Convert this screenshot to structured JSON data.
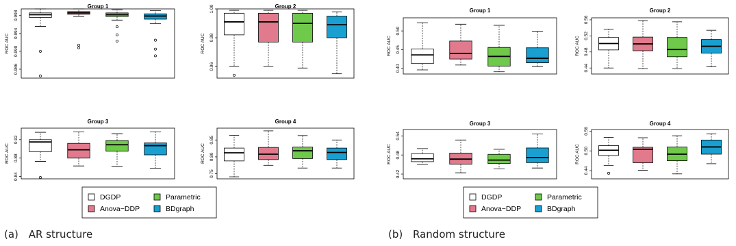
{
  "colors": {
    "DGDP": "#ffffff",
    "Anova-DDP": "#e17a8c",
    "Parametric": "#6fc94a",
    "BDgraph": "#1a9fd1",
    "stroke": "#000000"
  },
  "legend": [
    "DGDP",
    "Anova−DDP",
    "Parametric",
    "BDgraph"
  ],
  "captions": [
    {
      "tag": "(a)",
      "text": "AR structure"
    },
    {
      "tag": "(b)",
      "text": "Random structure"
    }
  ],
  "chart_data": [
    {
      "type": "box",
      "title": "Group 1",
      "ylabel": "ROC AUC",
      "yticks": [
        "0.986",
        "0.990",
        "0.994",
        "0.998"
      ],
      "ytick_values": [
        0.986,
        0.99,
        0.994,
        0.998
      ],
      "ylim": [
        0.984,
        0.9995
      ],
      "boxes": [
        {
          "whislo": 0.9956,
          "q1": 0.9976,
          "med": 0.9982,
          "q3": 0.9986,
          "whishi": 0.9995,
          "outliers": [
            0.99,
            0.9845
          ]
        },
        {
          "whislo": 0.9978,
          "q1": 0.9983,
          "med": 0.9986,
          "q3": 0.9989,
          "whishi": 0.9995,
          "outliers": [
            0.9914,
            0.9908
          ]
        },
        {
          "whislo": 0.997,
          "q1": 0.9978,
          "med": 0.9982,
          "q3": 0.9986,
          "whishi": 0.9993,
          "outliers": [
            0.9955,
            0.9937,
            0.9923
          ]
        },
        {
          "whislo": 0.9962,
          "q1": 0.9972,
          "med": 0.9979,
          "q3": 0.9984,
          "whishi": 0.9991,
          "outliers": [
            0.9925,
            0.9905,
            0.989
          ]
        }
      ]
    },
    {
      "type": "box",
      "title": "Group 2",
      "ylabel": "ROC AUC",
      "yticks": [
        "0.96",
        "0.98",
        "1.00"
      ],
      "ytick_values": [
        0.96,
        0.98,
        1.0
      ],
      "ylim": [
        0.952,
        1.0
      ],
      "boxes": [
        {
          "whislo": 0.96,
          "q1": 0.982,
          "med": 0.991,
          "q3": 0.997,
          "whishi": 0.999,
          "outliers": [
            0.954
          ]
        },
        {
          "whislo": 0.96,
          "q1": 0.977,
          "med": 0.991,
          "q3": 0.997,
          "whishi": 0.999,
          "outliers": []
        },
        {
          "whislo": 0.959,
          "q1": 0.977,
          "med": 0.99,
          "q3": 0.997,
          "whishi": 0.999,
          "outliers": []
        },
        {
          "whislo": 0.955,
          "q1": 0.98,
          "med": 0.989,
          "q3": 0.995,
          "whishi": 0.998,
          "outliers": []
        }
      ]
    },
    {
      "type": "box",
      "title": "Group 3",
      "ylabel": "ROC AUC",
      "yticks": [
        "0.84",
        "0.88",
        "0.92"
      ],
      "ytick_values": [
        0.84,
        0.88,
        0.92
      ],
      "ylim": [
        0.835,
        0.945
      ],
      "boxes": [
        {
          "whislo": 0.873,
          "q1": 0.894,
          "med": 0.915,
          "q3": 0.92,
          "whishi": 0.936,
          "outliers": [
            0.838
          ]
        },
        {
          "whislo": 0.863,
          "q1": 0.88,
          "med": 0.898,
          "q3": 0.912,
          "whishi": 0.937,
          "outliers": []
        },
        {
          "whislo": 0.862,
          "q1": 0.895,
          "med": 0.909,
          "q3": 0.918,
          "whishi": 0.933,
          "outliers": []
        },
        {
          "whislo": 0.858,
          "q1": 0.887,
          "med": 0.907,
          "q3": 0.913,
          "whishi": 0.937,
          "outliers": []
        }
      ]
    },
    {
      "type": "box",
      "title": "Group 4",
      "ylabel": "ROC AUC",
      "yticks": [
        "0.75",
        "0.80",
        "0.85"
      ],
      "ytick_values": [
        0.75,
        0.8,
        0.85
      ],
      "ylim": [
        0.735,
        0.885
      ],
      "boxes": [
        {
          "whislo": 0.741,
          "q1": 0.788,
          "med": 0.812,
          "q3": 0.826,
          "whishi": 0.864,
          "outliers": []
        },
        {
          "whislo": 0.775,
          "q1": 0.792,
          "med": 0.808,
          "q3": 0.828,
          "whishi": 0.877,
          "outliers": []
        },
        {
          "whislo": 0.767,
          "q1": 0.795,
          "med": 0.818,
          "q3": 0.829,
          "whishi": 0.863,
          "outliers": []
        },
        {
          "whislo": 0.767,
          "q1": 0.792,
          "med": 0.813,
          "q3": 0.826,
          "whishi": 0.85,
          "outliers": []
        }
      ]
    },
    {
      "type": "box",
      "title": "Group 1",
      "ylabel": "ROC AUC",
      "yticks": [
        "0.40",
        "0.45",
        "0.50"
      ],
      "ytick_values": [
        0.4,
        0.45,
        0.5
      ],
      "ylim": [
        0.385,
        0.535
      ],
      "boxes": [
        {
          "whislo": 0.396,
          "q1": 0.413,
          "med": 0.436,
          "q3": 0.452,
          "whishi": 0.522,
          "outliers": []
        },
        {
          "whislo": 0.409,
          "q1": 0.425,
          "med": 0.44,
          "q3": 0.473,
          "whishi": 0.518,
          "outliers": []
        },
        {
          "whislo": 0.391,
          "q1": 0.406,
          "med": 0.432,
          "q3": 0.456,
          "whishi": 0.515,
          "outliers": []
        },
        {
          "whislo": 0.405,
          "q1": 0.415,
          "med": 0.427,
          "q3": 0.455,
          "whishi": 0.499,
          "outliers": []
        }
      ]
    },
    {
      "type": "box",
      "title": "Group 2",
      "ylabel": "ROC AUC",
      "yticks": [
        "0.44",
        "0.48",
        "0.52",
        "0.56"
      ],
      "ytick_values": [
        0.44,
        0.48,
        0.52,
        0.56
      ],
      "ylim": [
        0.425,
        0.565
      ],
      "boxes": [
        {
          "whislo": 0.44,
          "q1": 0.485,
          "med": 0.501,
          "q3": 0.516,
          "whishi": 0.537,
          "outliers": []
        },
        {
          "whislo": 0.438,
          "q1": 0.483,
          "med": 0.5,
          "q3": 0.517,
          "whishi": 0.558,
          "outliers": []
        },
        {
          "whislo": 0.438,
          "q1": 0.468,
          "med": 0.486,
          "q3": 0.516,
          "whishi": 0.555,
          "outliers": []
        },
        {
          "whislo": 0.443,
          "q1": 0.477,
          "med": 0.494,
          "q3": 0.511,
          "whishi": 0.534,
          "outliers": []
        }
      ]
    },
    {
      "type": "box",
      "title": "Group 3",
      "ylabel": "ROC AUC",
      "yticks": [
        "0.42",
        "0.48",
        "0.54"
      ],
      "ytick_values": [
        0.42,
        0.48,
        0.54
      ],
      "ylim": [
        0.405,
        0.56
      ],
      "boxes": [
        {
          "whislo": 0.45,
          "q1": 0.459,
          "med": 0.468,
          "q3": 0.484,
          "whishi": 0.5,
          "outliers": []
        },
        {
          "whislo": 0.424,
          "q1": 0.451,
          "med": 0.467,
          "q3": 0.486,
          "whishi": 0.527,
          "outliers": []
        },
        {
          "whislo": 0.436,
          "q1": 0.453,
          "med": 0.464,
          "q3": 0.482,
          "whishi": 0.498,
          "outliers": []
        },
        {
          "whislo": 0.439,
          "q1": 0.456,
          "med": 0.472,
          "q3": 0.502,
          "whishi": 0.546,
          "outliers": []
        }
      ]
    },
    {
      "type": "box",
      "title": "Group 4",
      "ylabel": "ROC AUC",
      "yticks": [
        "0.44",
        "0.50",
        "0.56"
      ],
      "ytick_values": [
        0.44,
        0.5,
        0.56
      ],
      "ylim": [
        0.415,
        0.565
      ],
      "boxes": [
        {
          "whislo": 0.456,
          "q1": 0.486,
          "med": 0.502,
          "q3": 0.516,
          "whishi": 0.541,
          "outliers": [
            0.432
          ]
        },
        {
          "whislo": 0.441,
          "q1": 0.464,
          "med": 0.505,
          "q3": 0.511,
          "whishi": 0.54,
          "outliers": []
        },
        {
          "whislo": 0.43,
          "q1": 0.47,
          "med": 0.49,
          "q3": 0.512,
          "whishi": 0.546,
          "outliers": []
        },
        {
          "whislo": 0.461,
          "q1": 0.49,
          "med": 0.512,
          "q3": 0.533,
          "whishi": 0.552,
          "outliers": []
        }
      ]
    }
  ]
}
